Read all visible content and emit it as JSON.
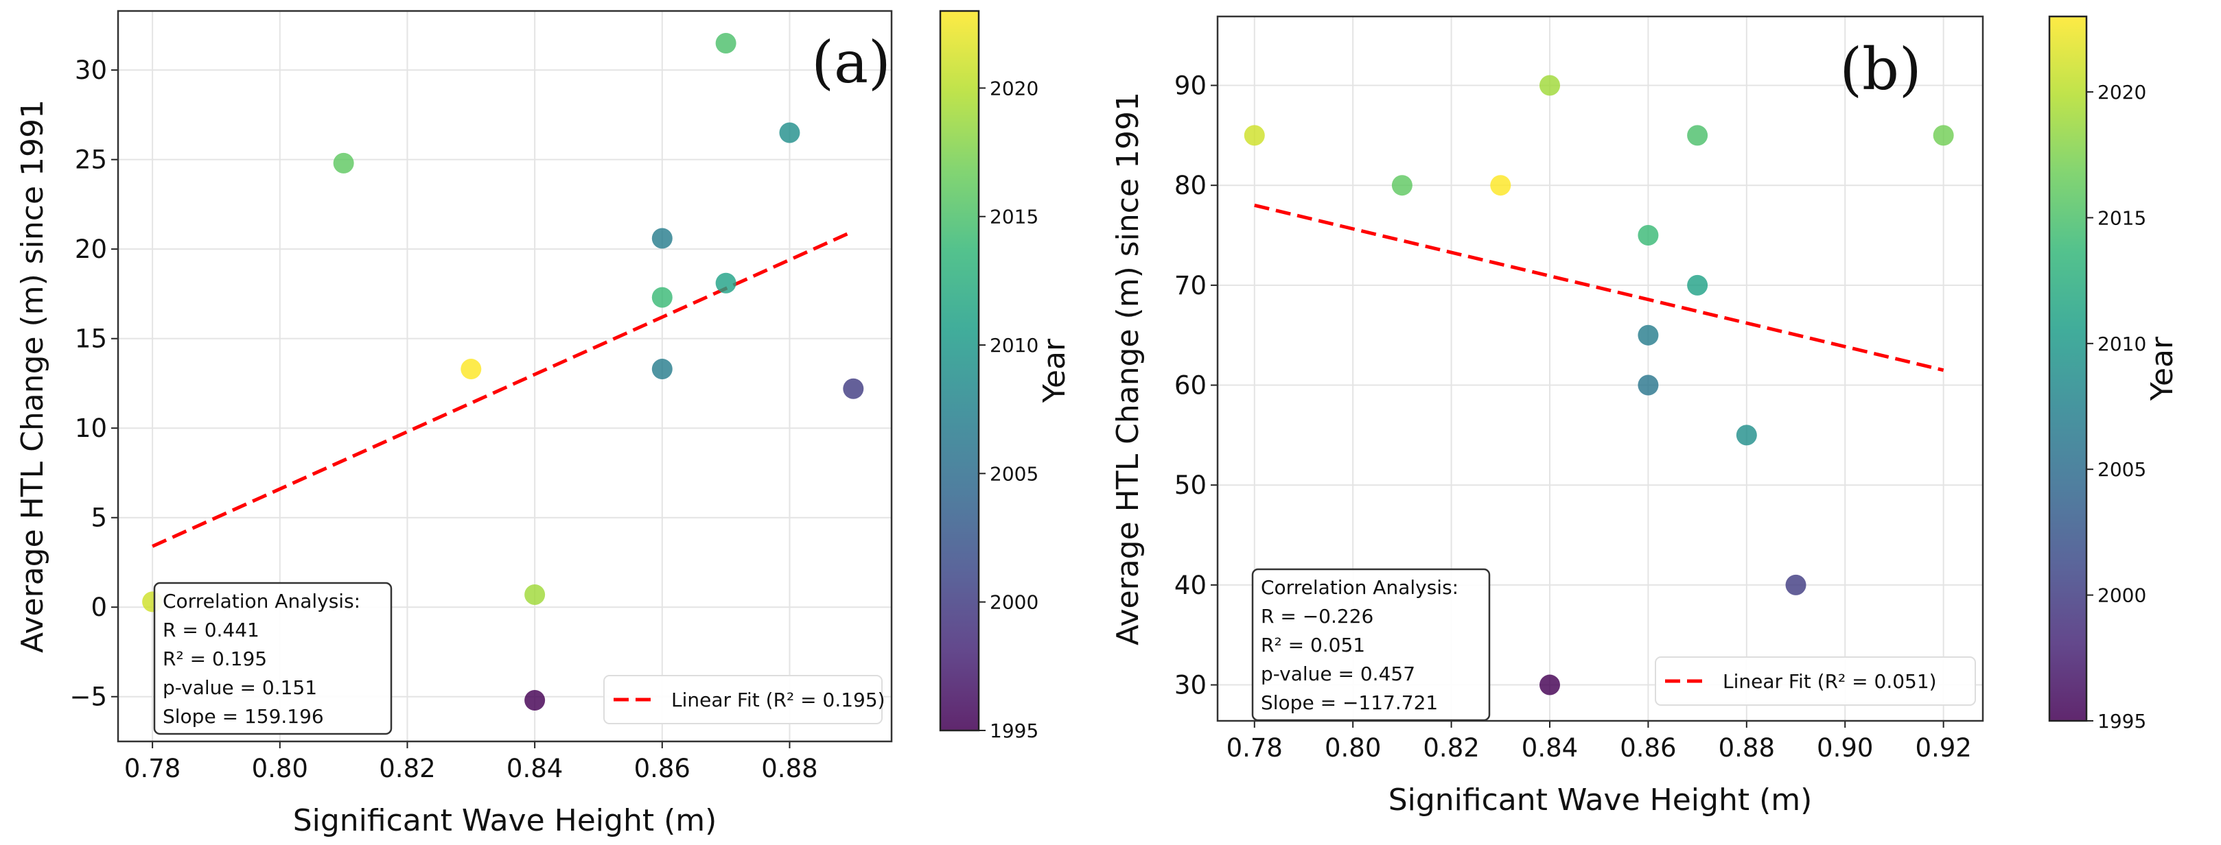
{
  "chart_data": [
    {
      "type": "scatter",
      "panel_label": "(a)",
      "xlabel": "Significant Wave Height (m)",
      "ylabel": "Average HTL Change (m) since 1991",
      "xlim": [
        0.7746,
        0.896
      ],
      "ylim": [
        -7.5,
        33.3
      ],
      "xticks": [
        0.78,
        0.8,
        0.82,
        0.84,
        0.86,
        0.88
      ],
      "xtick_labels": [
        "0.78",
        "0.80",
        "0.82",
        "0.84",
        "0.86",
        "0.88"
      ],
      "yticks": [
        -5,
        0,
        5,
        10,
        15,
        20,
        25,
        30
      ],
      "ytick_labels": [
        "−5",
        "0",
        "5",
        "10",
        "15",
        "20",
        "25",
        "30"
      ],
      "grid": true,
      "points": [
        {
          "x": 0.78,
          "y": 0.3,
          "year": 2021
        },
        {
          "x": 0.81,
          "y": 24.8,
          "year": 2016
        },
        {
          "x": 0.83,
          "y": 13.3,
          "year": 2023
        },
        {
          "x": 0.84,
          "y": 0.7,
          "year": 2019
        },
        {
          "x": 0.84,
          "y": -5.2,
          "year": 1995
        },
        {
          "x": 0.86,
          "y": 20.6,
          "year": 2007
        },
        {
          "x": 0.86,
          "y": 17.3,
          "year": 2014
        },
        {
          "x": 0.86,
          "y": 13.3,
          "year": 2007
        },
        {
          "x": 0.87,
          "y": 31.5,
          "year": 2015
        },
        {
          "x": 0.87,
          "y": 18.1,
          "year": 2011
        },
        {
          "x": 0.88,
          "y": 26.5,
          "year": 2009
        },
        {
          "x": 0.89,
          "y": 12.2,
          "year": 2000
        }
      ],
      "fit_line": {
        "x": [
          0.78,
          0.89
        ],
        "y": [
          3.4,
          21.0
        ],
        "color": "#ff0000"
      },
      "legend": {
        "label": "Linear Fit (R² = 0.195)",
        "placement": "lower-right"
      },
      "stats_box": {
        "title": "Correlation Analysis:",
        "lines": [
          "R = 0.441",
          "R² = 0.195",
          "p-value = 0.151",
          "Slope = 159.196"
        ]
      },
      "colorbar": {
        "label": "Year",
        "range": [
          1995,
          2023
        ],
        "ticks": [
          1995,
          2000,
          2005,
          2010,
          2015,
          2020
        ],
        "tick_labels": [
          "1995",
          "2000",
          "2005",
          "2010",
          "2015",
          "2020"
        ],
        "colormap": "viridis"
      }
    },
    {
      "type": "scatter",
      "panel_label": "(b)",
      "xlabel": "Significant Wave Height (m)",
      "ylabel": "Average HTL Change (m) since 1991",
      "xlim": [
        0.7725,
        0.928
      ],
      "ylim": [
        26.4,
        96.9
      ],
      "xticks": [
        0.78,
        0.8,
        0.82,
        0.84,
        0.86,
        0.88,
        0.9,
        0.92
      ],
      "xtick_labels": [
        "0.78",
        "0.80",
        "0.82",
        "0.84",
        "0.86",
        "0.88",
        "0.90",
        "0.92"
      ],
      "yticks": [
        30,
        40,
        50,
        60,
        70,
        80,
        90
      ],
      "ytick_labels": [
        "30",
        "40",
        "50",
        "60",
        "70",
        "80",
        "90"
      ],
      "grid": true,
      "points": [
        {
          "x": 0.78,
          "y": 85,
          "year": 2021
        },
        {
          "x": 0.81,
          "y": 80,
          "year": 2016
        },
        {
          "x": 0.83,
          "y": 80,
          "year": 2023
        },
        {
          "x": 0.84,
          "y": 90,
          "year": 2019
        },
        {
          "x": 0.84,
          "y": 30,
          "year": 1995
        },
        {
          "x": 0.86,
          "y": 75,
          "year": 2014
        },
        {
          "x": 0.86,
          "y": 65,
          "year": 2007
        },
        {
          "x": 0.86,
          "y": 60,
          "year": 2006
        },
        {
          "x": 0.87,
          "y": 85,
          "year": 2015
        },
        {
          "x": 0.87,
          "y": 70,
          "year": 2011
        },
        {
          "x": 0.88,
          "y": 55,
          "year": 2009
        },
        {
          "x": 0.89,
          "y": 40,
          "year": 2000
        },
        {
          "x": 0.92,
          "y": 85,
          "year": 2017
        }
      ],
      "fit_line": {
        "x": [
          0.78,
          0.92
        ],
        "y": [
          78.0,
          61.5
        ],
        "color": "#ff0000"
      },
      "legend": {
        "label": "Linear Fit (R² = 0.051)",
        "placement": "lower-right"
      },
      "stats_box": {
        "title": "Correlation Analysis:",
        "lines": [
          "R = −0.226",
          "R² = 0.051",
          "p-value = 0.457",
          "Slope = −117.721"
        ]
      },
      "colorbar": {
        "label": "Year",
        "range": [
          1995,
          2023
        ],
        "ticks": [
          1995,
          2000,
          2005,
          2010,
          2015,
          2020
        ],
        "tick_labels": [
          "1995",
          "2000",
          "2005",
          "2010",
          "2015",
          "2020"
        ],
        "colormap": "viridis"
      }
    }
  ]
}
